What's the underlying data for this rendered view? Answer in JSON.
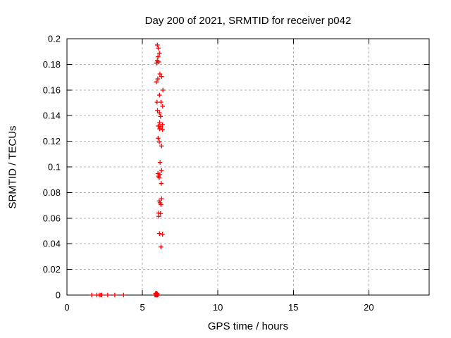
{
  "style": {
    "background": "#ffffff",
    "axis_color": "#000000",
    "grid_color": "#b0b0b0",
    "marker_color": "#ff0000"
  },
  "chart_data": {
    "type": "scatter",
    "title": "Day 200 of 2021, SRMTID for receiver p042",
    "xlabel": "GPS time / hours",
    "ylabel": "SRMTID / TECUs",
    "xlim": [
      0,
      24
    ],
    "ylim": [
      0,
      0.2
    ],
    "grid": true,
    "legend": "none",
    "xticks": {
      "values": [
        0,
        5,
        10,
        15,
        20
      ],
      "labels": [
        "0",
        "5",
        "10",
        "15",
        "20"
      ]
    },
    "yticks": {
      "values": [
        0,
        0.02,
        0.04,
        0.06,
        0.08,
        0.1,
        0.12,
        0.14,
        0.16,
        0.18,
        0.2
      ],
      "labels": [
        "0",
        "0.02",
        "0.04",
        "0.06",
        "0.08",
        "0.1",
        "0.12",
        "0.14",
        "0.16",
        "0.18",
        "0.2"
      ]
    },
    "series": [
      {
        "name": "SRMTID",
        "marker": "plus",
        "color": "#ff0000",
        "points": [
          [
            1.64,
            0
          ],
          [
            1.98,
            0
          ],
          [
            2.14,
            0
          ],
          [
            2.24,
            0
          ],
          [
            2.3,
            0
          ],
          [
            2.7,
            0
          ],
          [
            3.17,
            0
          ],
          [
            3.75,
            0
          ],
          [
            5.83,
            0
          ],
          [
            5.87,
            0
          ],
          [
            5.91,
            0
          ],
          [
            5.95,
            0
          ],
          [
            5.99,
            0
          ],
          [
            6.03,
            0
          ],
          [
            5.87,
            0.0012
          ],
          [
            5.91,
            0.001
          ],
          [
            5.95,
            0.0015
          ],
          [
            5.99,
            0.0008
          ],
          [
            5.99,
            0.1951
          ],
          [
            6.06,
            0.1927
          ],
          [
            6.13,
            0.1887
          ],
          [
            6.03,
            0.1859
          ],
          [
            5.99,
            0.183
          ],
          [
            6.09,
            0.1819
          ],
          [
            5.92,
            0.181
          ],
          [
            6.16,
            0.1725
          ],
          [
            6.27,
            0.1705
          ],
          [
            6.02,
            0.1687
          ],
          [
            5.92,
            0.1663
          ],
          [
            6.36,
            0.1599
          ],
          [
            6.13,
            0.156
          ],
          [
            5.97,
            0.1505
          ],
          [
            6.23,
            0.1505
          ],
          [
            6.34,
            0.1473
          ],
          [
            6.0,
            0.1441
          ],
          [
            6.13,
            0.1422
          ],
          [
            6.2,
            0.1394
          ],
          [
            6.14,
            0.1346
          ],
          [
            6.33,
            0.133
          ],
          [
            6.05,
            0.1319
          ],
          [
            6.23,
            0.1313
          ],
          [
            6.14,
            0.1297
          ],
          [
            6.33,
            0.1291
          ],
          [
            6.04,
            0.1224
          ],
          [
            6.12,
            0.1194
          ],
          [
            6.27,
            0.1163
          ],
          [
            6.17,
            0.1035
          ],
          [
            6.27,
            0.0971
          ],
          [
            6.03,
            0.0948
          ],
          [
            6.16,
            0.0941
          ],
          [
            6.06,
            0.0928
          ],
          [
            6.11,
            0.0915
          ],
          [
            6.25,
            0.0871
          ],
          [
            6.27,
            0.0752
          ],
          [
            6.11,
            0.0734
          ],
          [
            6.17,
            0.072
          ],
          [
            6.23,
            0.0706
          ],
          [
            6.08,
            0.064
          ],
          [
            6.2,
            0.0636
          ],
          [
            6.08,
            0.0614
          ],
          [
            6.13,
            0.048
          ],
          [
            6.33,
            0.0474
          ],
          [
            6.23,
            0.0375
          ]
        ]
      }
    ]
  }
}
